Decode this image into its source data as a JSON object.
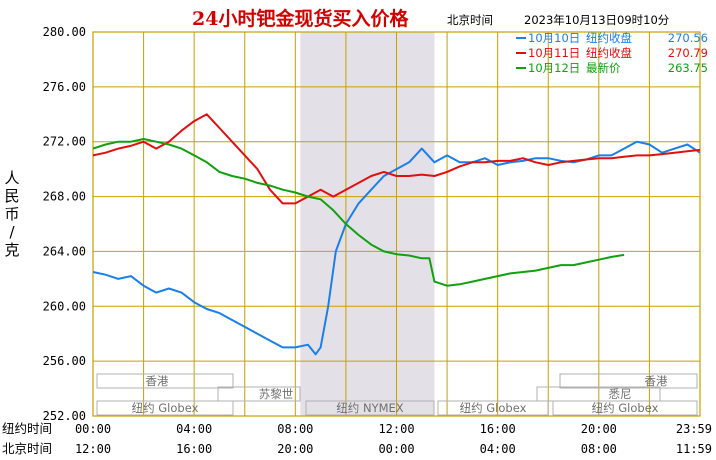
{
  "header": {
    "title": "24小时钯金现货买入价格",
    "location": "北京时间",
    "datetime": "2023年10月13日09时10分"
  },
  "colors": {
    "title": "#d40000",
    "grid": "#c8a000",
    "band": "#e4e0e8",
    "oct10": "#1a7fe8",
    "oct11": "#e01010",
    "oct12": "#10a010",
    "market_text": "#707070"
  },
  "legend": [
    {
      "label": "10月10日",
      "kind": "纽约收盘",
      "value": "270.56"
    },
    {
      "label": "10月11日",
      "kind": "纽约收盘",
      "value": "270.79"
    },
    {
      "label": "10月12日",
      "kind": "最新价",
      "value": "263.75"
    }
  ],
  "axis": {
    "ylabel": "人民币/克",
    "row1_label": "纽约时间",
    "row2_label": "北京时间",
    "ny_ticks": [
      "00:00",
      "04:00",
      "08:00",
      "12:00",
      "16:00",
      "20:00",
      "23:59"
    ],
    "bj_ticks": [
      "12:00",
      "16:00",
      "20:00",
      "00:00",
      "04:00",
      "08:00",
      "11:59"
    ],
    "yticks": [
      "280.00",
      "276.00",
      "272.00",
      "268.00",
      "264.00",
      "260.00",
      "256.00",
      "252.00"
    ]
  },
  "markets": [
    {
      "label": "香港"
    },
    {
      "label": "苏黎世"
    },
    {
      "label": "纽约 Globex"
    },
    {
      "label": "纽约 NYMEX"
    },
    {
      "label": "纽约 Globex"
    },
    {
      "label": "香港"
    },
    {
      "label": "悉尼"
    },
    {
      "label": "纽约 Globex"
    }
  ],
  "chart_data": {
    "type": "line",
    "title": "24小时钯金现货买入价格",
    "xlabel": "纽约时间 / 北京时间",
    "ylabel": "人民币/克",
    "xlim": [
      0,
      24
    ],
    "ylim": [
      252,
      280
    ],
    "shaded_range_hours": [
      8.2,
      13.5
    ],
    "series": [
      {
        "name": "10月10日",
        "x": [
          0,
          0.5,
          1,
          1.5,
          2,
          2.5,
          3,
          3.5,
          4,
          4.5,
          5,
          5.5,
          6,
          6.5,
          7,
          7.5,
          8,
          8.5,
          8.8,
          9,
          9.3,
          9.6,
          10,
          10.5,
          11,
          11.5,
          12,
          12.5,
          13,
          13.5,
          14,
          14.5,
          15,
          15.5,
          16,
          16.5,
          17,
          17.5,
          18,
          18.5,
          19,
          19.5,
          20,
          20.5,
          21,
          21.5,
          22,
          22.5,
          23,
          23.5,
          24
        ],
        "y": [
          262.5,
          262.3,
          262.0,
          262.2,
          261.5,
          261.0,
          261.3,
          261.0,
          260.3,
          259.8,
          259.5,
          259.0,
          258.5,
          258.0,
          257.5,
          257.0,
          257.0,
          257.2,
          256.5,
          257.0,
          260.0,
          264.0,
          266.0,
          267.5,
          268.5,
          269.5,
          270.0,
          270.5,
          271.5,
          270.5,
          271.0,
          270.5,
          270.5,
          270.8,
          270.3,
          270.5,
          270.6,
          270.8,
          270.8,
          270.6,
          270.5,
          270.7,
          271.0,
          271.0,
          271.5,
          272.0,
          271.8,
          271.2,
          271.5,
          271.8,
          271.2
        ]
      },
      {
        "name": "10月11日",
        "x": [
          0,
          0.5,
          1,
          1.5,
          2,
          2.5,
          3,
          3.5,
          4,
          4.5,
          5,
          5.5,
          6,
          6.5,
          7,
          7.5,
          8,
          8.5,
          9,
          9.5,
          10,
          10.5,
          11,
          11.5,
          12,
          12.5,
          13,
          13.5,
          14,
          14.5,
          15,
          15.5,
          16,
          16.5,
          17,
          17.5,
          18,
          18.5,
          19,
          19.5,
          20,
          20.5,
          21,
          21.5,
          22,
          22.5,
          23,
          23.5,
          24
        ],
        "y": [
          271.0,
          271.2,
          271.5,
          271.7,
          272.0,
          271.5,
          272.0,
          272.8,
          273.5,
          274.0,
          273.0,
          272.0,
          271.0,
          270.0,
          268.5,
          267.5,
          267.5,
          268.0,
          268.5,
          268.0,
          268.5,
          269.0,
          269.5,
          269.8,
          269.5,
          269.5,
          269.6,
          269.5,
          269.8,
          270.2,
          270.5,
          270.5,
          270.6,
          270.6,
          270.8,
          270.5,
          270.3,
          270.5,
          270.6,
          270.7,
          270.8,
          270.8,
          270.9,
          271.0,
          271.0,
          271.1,
          271.2,
          271.3,
          271.4
        ]
      },
      {
        "name": "10月12日",
        "x": [
          0,
          0.5,
          1,
          1.5,
          2,
          2.5,
          3,
          3.5,
          4,
          4.5,
          5,
          5.5,
          6,
          6.5,
          7,
          7.5,
          8,
          8.5,
          9,
          9.5,
          10,
          10.5,
          11,
          11.5,
          12,
          12.5,
          13,
          13.3,
          13.5,
          14,
          14.5,
          15,
          15.5,
          16,
          16.5,
          17,
          17.5,
          18,
          18.5,
          19,
          19.5,
          20,
          20.5,
          21
        ],
        "y": [
          271.5,
          271.8,
          272.0,
          272.0,
          272.2,
          272.0,
          271.8,
          271.5,
          271.0,
          270.5,
          269.8,
          269.5,
          269.3,
          269.0,
          268.8,
          268.5,
          268.3,
          268.0,
          267.8,
          267.0,
          266.0,
          265.2,
          264.5,
          264.0,
          263.8,
          263.7,
          263.5,
          263.5,
          261.8,
          261.5,
          261.6,
          261.8,
          262.0,
          262.2,
          262.4,
          262.5,
          262.6,
          262.8,
          263.0,
          263.0,
          263.2,
          263.4,
          263.6,
          263.75
        ]
      }
    ]
  }
}
